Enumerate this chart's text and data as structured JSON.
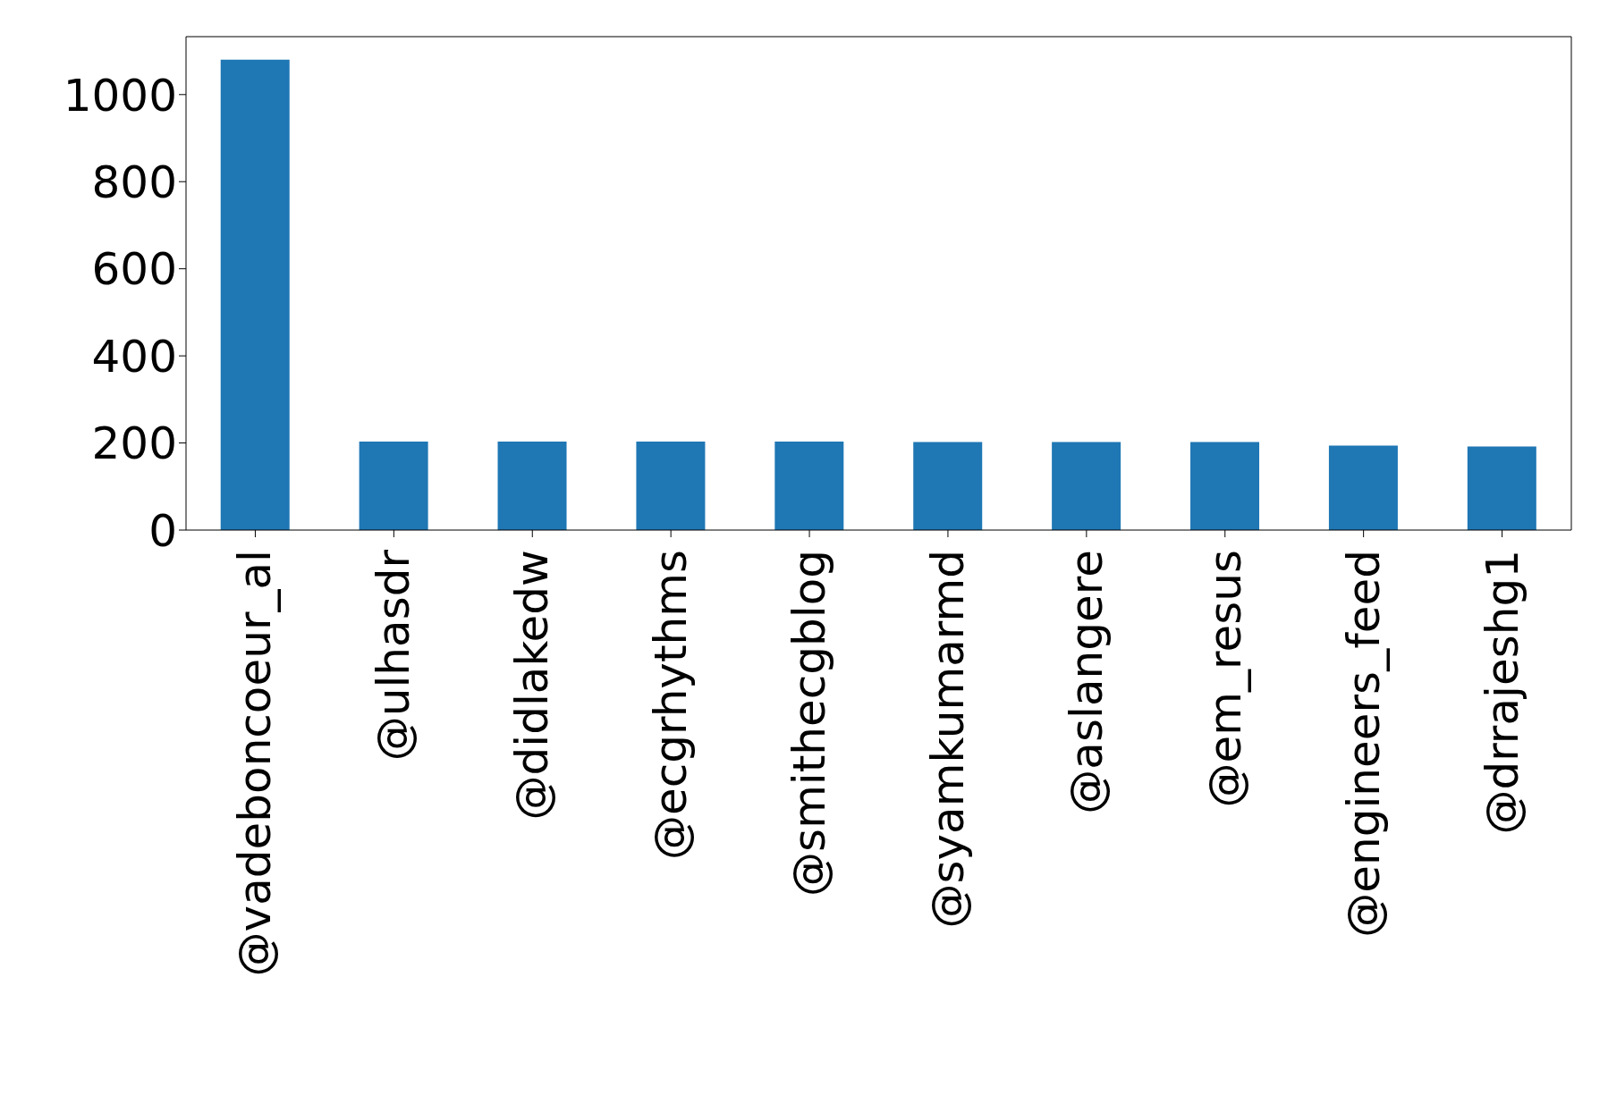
{
  "chart_data": {
    "type": "bar",
    "categories": [
      "@vadeboncoeur_al",
      "@ulhasdr",
      "@didlakedw",
      "@ecgrhythms",
      "@smithecgblog",
      "@syamkumarmd",
      "@aslangere",
      "@em_resus",
      "@engineers_feed",
      "@drrajeshg1"
    ],
    "values": [
      1080,
      203,
      203,
      203,
      203,
      202,
      202,
      202,
      194,
      192
    ],
    "color": "#1f77b4",
    "ylim": [
      0,
      1133
    ],
    "yticks": [
      0,
      200,
      400,
      600,
      800,
      1000
    ],
    "grid": false,
    "legend": false
  }
}
